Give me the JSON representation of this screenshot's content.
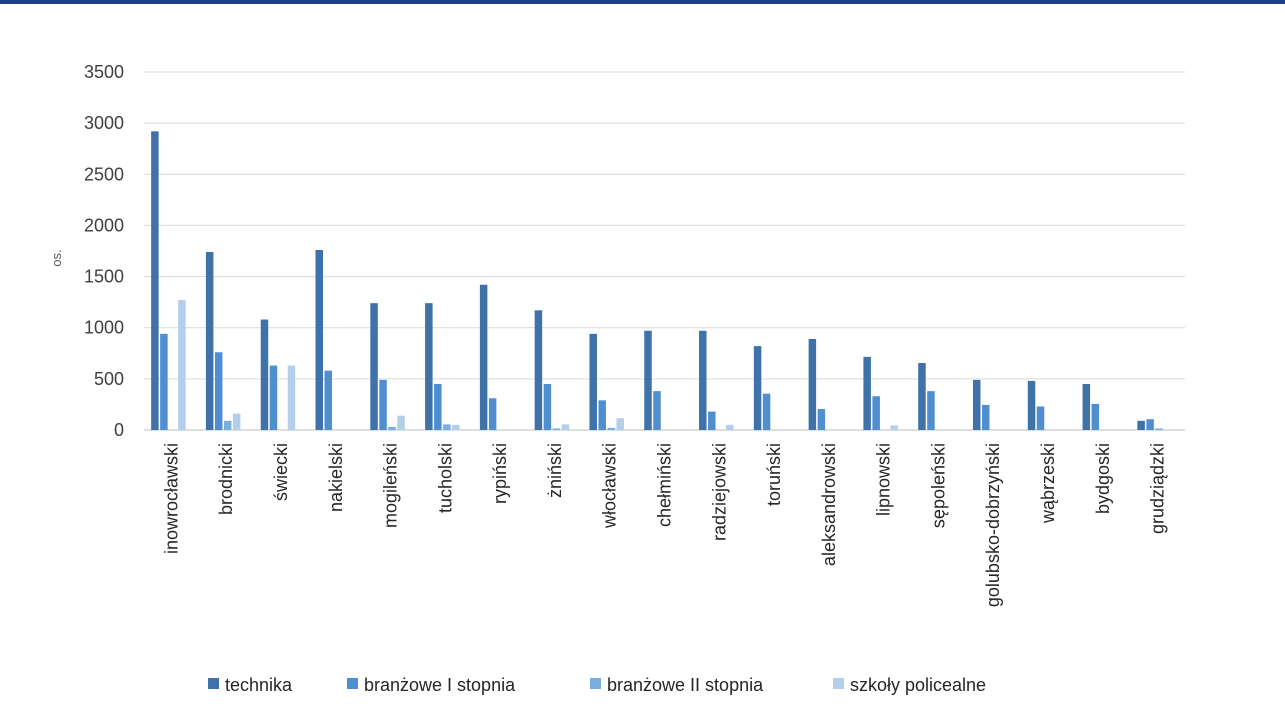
{
  "chart_data": {
    "type": "bar",
    "ylabel": "os.",
    "ylim": [
      0,
      3500
    ],
    "yticks": [
      0,
      500,
      1000,
      1500,
      2000,
      2500,
      3000,
      3500
    ],
    "grid": true,
    "legend_position": "bottom",
    "categories": [
      "inowrocławski",
      "brodnicki",
      "świecki",
      "nakielski",
      "mogileński",
      "tucholski",
      "rypiński",
      "żniński",
      "włocławski",
      "chełmiński",
      "radziejowski",
      "toruński",
      "aleksandrowski",
      "lipnowski",
      "sępoleński",
      "golubsko-dobrzyński",
      "wąbrzeski",
      "bydgoski",
      "grudziądzki"
    ],
    "series": [
      {
        "name": "technika",
        "color": "#3f72a8",
        "values": [
          2920,
          1740,
          1080,
          1760,
          1240,
          1240,
          1420,
          1170,
          940,
          970,
          970,
          820,
          890,
          715,
          655,
          490,
          480,
          450,
          90
        ]
      },
      {
        "name": "branżowe I stopnia",
        "color": "#4f8fd0",
        "values": [
          940,
          760,
          630,
          580,
          490,
          450,
          310,
          450,
          290,
          380,
          180,
          355,
          205,
          330,
          380,
          245,
          230,
          255,
          105
        ]
      },
      {
        "name": "branżowe II stopnia",
        "color": "#7aaee3",
        "values": [
          0,
          90,
          0,
          0,
          30,
          55,
          0,
          15,
          20,
          0,
          0,
          0,
          0,
          0,
          0,
          0,
          0,
          0,
          15
        ]
      },
      {
        "name": "szkoły policealne",
        "color": "#b4cfec",
        "values": [
          1270,
          160,
          630,
          0,
          140,
          50,
          0,
          55,
          115,
          0,
          50,
          0,
          0,
          45,
          0,
          0,
          0,
          0,
          0
        ]
      }
    ]
  }
}
